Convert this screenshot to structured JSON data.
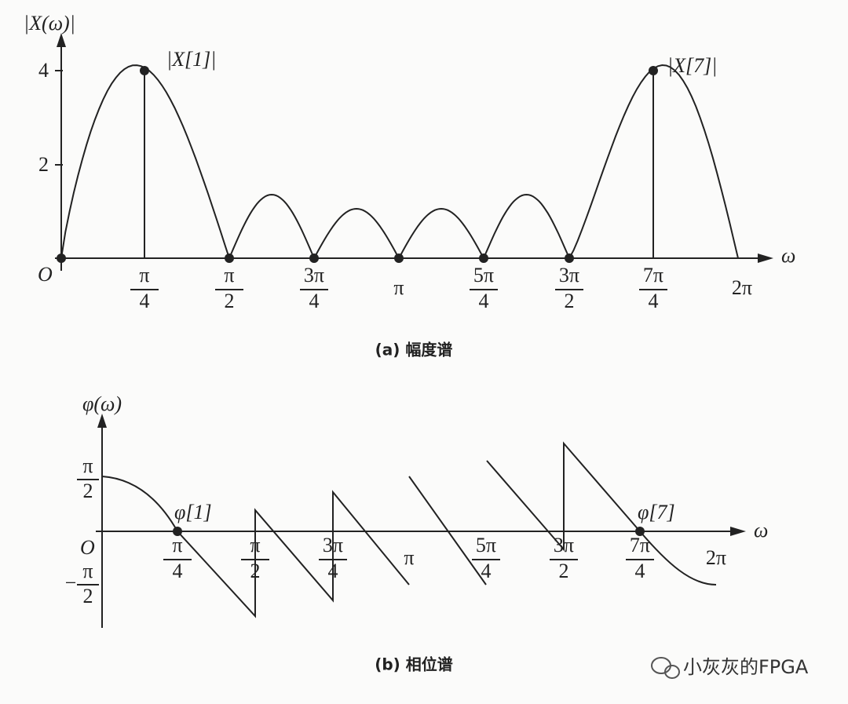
{
  "top": {
    "y_axis_label": "|X(ω)|",
    "y_ticks": [
      "4",
      "2"
    ],
    "origin": "O",
    "x_axis_label": "ω",
    "peak_labels": [
      "|X[1]|",
      "|X[7]|"
    ],
    "x_ticks": [
      {
        "num": "π",
        "den": "4"
      },
      {
        "num": "π",
        "den": "2"
      },
      {
        "num": "3π",
        "den": "4"
      },
      {
        "text": "π"
      },
      {
        "num": "5π",
        "den": "4"
      },
      {
        "num": "3π",
        "den": "2"
      },
      {
        "num": "7π",
        "den": "4"
      },
      {
        "text": "2π"
      }
    ],
    "caption": "(a) 幅度谱"
  },
  "bottom": {
    "y_axis_label": "φ(ω)",
    "upper_tick": {
      "num": "π",
      "den": "2"
    },
    "lower_tick": {
      "sign": "−",
      "num": "π",
      "den": "2"
    },
    "origin": "O",
    "x_axis_label": "ω",
    "point_labels": [
      "φ[1]",
      "φ[7]"
    ],
    "x_ticks": [
      {
        "num": "π",
        "den": "4"
      },
      {
        "num": "π",
        "den": "2"
      },
      {
        "num": "3π",
        "den": "4"
      },
      {
        "text": "π"
      },
      {
        "num": "5π",
        "den": "4"
      },
      {
        "num": "3π",
        "den": "2"
      },
      {
        "num": "7π",
        "den": "4"
      },
      {
        "text": "2π"
      }
    ],
    "caption": "(b) 相位谱"
  },
  "watermark": "小灰灰的FPGA"
}
